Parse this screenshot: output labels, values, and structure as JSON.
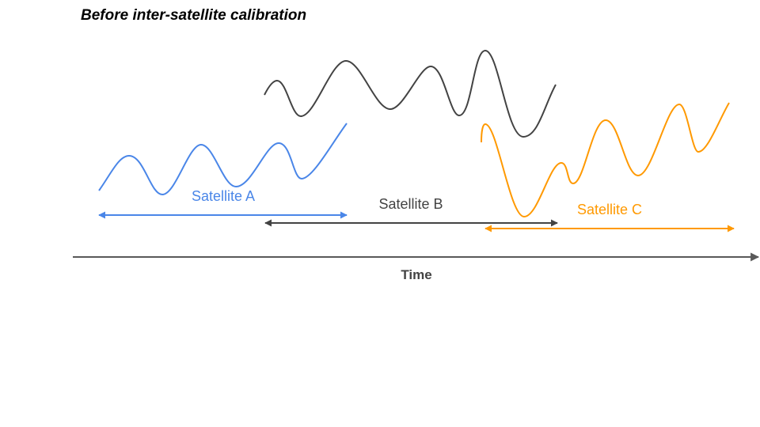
{
  "title": "Before inter-satellite calibration",
  "axis": {
    "label": "Time",
    "color": "#595959"
  },
  "satellites": [
    {
      "label": "Satellite A",
      "color": "#4a86e8"
    },
    {
      "label": "Satellite B",
      "color": "#434343"
    },
    {
      "label": "Satellite C",
      "color": "#ff9900"
    }
  ]
}
